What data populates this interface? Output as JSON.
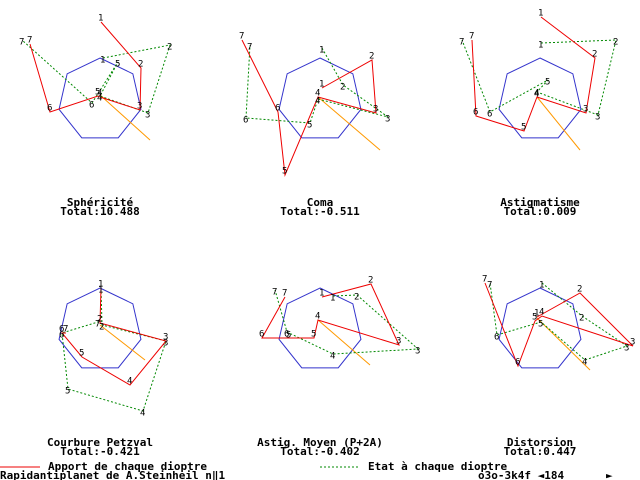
{
  "panels": [
    {
      "title": "Sphéricité",
      "total": "Total:10.488",
      "labels": [
        "1",
        "2",
        "3",
        "4",
        "5",
        "6",
        "7"
      ]
    },
    {
      "title": "Coma",
      "total": "Total:-0.511",
      "labels": [
        "1",
        "2",
        "3",
        "4",
        "5",
        "6",
        "7"
      ]
    },
    {
      "title": "Astigmatisme",
      "total": "Total:0.009",
      "labels": [
        "1",
        "2",
        "3",
        "4",
        "5",
        "6",
        "7"
      ]
    },
    {
      "title": "Courbure Petzval",
      "total": "Total:-0.421",
      "labels": [
        "1",
        "2",
        "3",
        "4",
        "5",
        "6",
        "7"
      ]
    },
    {
      "title": "Astig. Moyen (P+2A)",
      "total": "Total:-0.402",
      "labels": [
        "1",
        "2",
        "3",
        "4",
        "5",
        "6",
        "7"
      ]
    },
    {
      "title": "Distorsion",
      "total": "Total:0.447",
      "labels": [
        "1",
        "2",
        "3",
        "4",
        "5",
        "6",
        "7"
      ]
    }
  ],
  "legend": {
    "red": "Apport de chaque dioptre",
    "green": "Etat à chaque dioptre"
  },
  "footer": {
    "left": "Rapidantiplanet de A.Steinheil n‖1",
    "right": "o3o-3k4f ◄184",
    "arrow": "►"
  }
}
